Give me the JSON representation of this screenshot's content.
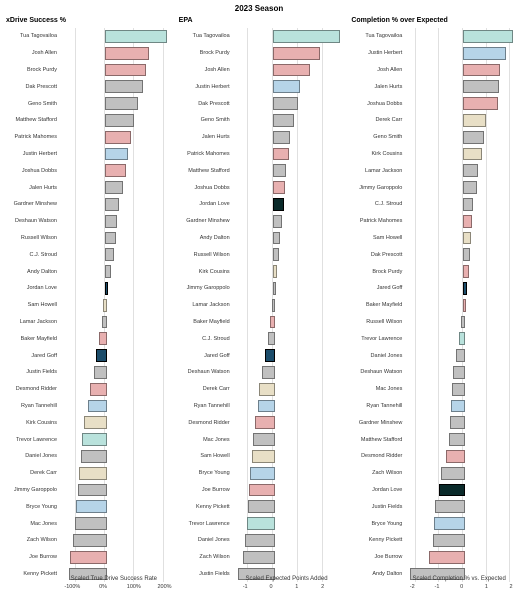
{
  "season_title": "2023 Season",
  "background_color": "#ffffff",
  "grid_color": "#e0e0e0",
  "highlight_border_color": "#000000",
  "font_family": "Arial",
  "title_fontsize": 8,
  "panel_title_fontsize": 7,
  "label_fontsize": 5.5,
  "axis_title_fontsize": 6,
  "highlighted_players": [
    "Jordan Love",
    "Jared Goff"
  ],
  "highlighted_color": "#1c4d6b",
  "colors": {
    "pale_teal": "#b9e2dc",
    "pale_blue": "#b6d4e8",
    "pale_red": "#e8b0b0",
    "pale_gray": "#c0c0c0",
    "pale_cream": "#e8dfc6",
    "pale_pink": "#e8c6d4",
    "highlight_blue": "#1c4d6b",
    "highlight_dark": "#0a2a2a"
  },
  "panels": [
    {
      "title": "xDrive Success %",
      "x_label": "Scaled True Drive Success Rate",
      "xlim": [
        -150,
        220
      ],
      "ticks": [
        -100,
        0,
        100,
        200
      ],
      "tick_labels": [
        "-100%",
        "0%",
        "100%",
        "200%"
      ],
      "data": [
        {
          "name": "Tua Tagovailoa",
          "value": 200,
          "color": "#b9e2dc"
        },
        {
          "name": "Josh Allen",
          "value": 140,
          "color": "#e8b0b0"
        },
        {
          "name": "Brock Purdy",
          "value": 130,
          "color": "#e8b0b0"
        },
        {
          "name": "Dak Prescott",
          "value": 120,
          "color": "#c0c0c0"
        },
        {
          "name": "Geno Smith",
          "value": 105,
          "color": "#c0c0c0"
        },
        {
          "name": "Matthew Stafford",
          "value": 90,
          "color": "#c0c0c0"
        },
        {
          "name": "Patrick Mahomes",
          "value": 80,
          "color": "#e8b0b0"
        },
        {
          "name": "Justin Herbert",
          "value": 70,
          "color": "#b6d4e8"
        },
        {
          "name": "Joshua Dobbs",
          "value": 65,
          "color": "#e8b0b0"
        },
        {
          "name": "Jalen Hurts",
          "value": 55,
          "color": "#c0c0c0"
        },
        {
          "name": "Gardner Minshew",
          "value": 40,
          "color": "#c0c0c0"
        },
        {
          "name": "Deshaun Watson",
          "value": 35,
          "color": "#c0c0c0"
        },
        {
          "name": "Russell Wilson",
          "value": 30,
          "color": "#c0c0c0"
        },
        {
          "name": "C.J. Stroud",
          "value": 25,
          "color": "#c0c0c0"
        },
        {
          "name": "Andy Dalton",
          "value": 15,
          "color": "#c0c0c0"
        },
        {
          "name": "Jordan Love",
          "value": 5,
          "color": "#1c4d6b",
          "highlighted": true
        },
        {
          "name": "Sam Howell",
          "value": -5,
          "color": "#e8dfc6"
        },
        {
          "name": "Lamar Jackson",
          "value": -10,
          "color": "#c0c0c0"
        },
        {
          "name": "Baker Mayfield",
          "value": -20,
          "color": "#e8b0b0"
        },
        {
          "name": "Jared Goff",
          "value": -30,
          "color": "#1c4d6b",
          "highlighted": true
        },
        {
          "name": "Justin Fields",
          "value": -35,
          "color": "#c0c0c0"
        },
        {
          "name": "Desmond Ridder",
          "value": -50,
          "color": "#e8b0b0"
        },
        {
          "name": "Ryan Tannehill",
          "value": -55,
          "color": "#b6d4e8"
        },
        {
          "name": "Kirk Cousins",
          "value": -70,
          "color": "#e8dfc6"
        },
        {
          "name": "Trevor Lawrence",
          "value": -75,
          "color": "#b9e2dc"
        },
        {
          "name": "Daniel Jones",
          "value": -80,
          "color": "#c0c0c0"
        },
        {
          "name": "Derek Carr",
          "value": -85,
          "color": "#e8dfc6"
        },
        {
          "name": "Jimmy Garoppolo",
          "value": -90,
          "color": "#c0c0c0"
        },
        {
          "name": "Bryce Young",
          "value": -95,
          "color": "#b6d4e8"
        },
        {
          "name": "Mac Jones",
          "value": -100,
          "color": "#c0c0c0"
        },
        {
          "name": "Zach Wilson",
          "value": -105,
          "color": "#c0c0c0"
        },
        {
          "name": "Joe Burrow",
          "value": -115,
          "color": "#e8b0b0"
        },
        {
          "name": "Kenny Pickett",
          "value": -120,
          "color": "#c0c0c0"
        }
      ]
    },
    {
      "title": "EPA",
      "x_label": "Scaled Expected Points Added",
      "xlim": [
        -1.6,
        2.8
      ],
      "ticks": [
        -1,
        0,
        1,
        2
      ],
      "tick_labels": [
        "-1",
        "0",
        "1",
        "2"
      ],
      "data": [
        {
          "name": "Tua Tagovailoa",
          "value": 2.6,
          "color": "#b9e2dc"
        },
        {
          "name": "Brock Purdy",
          "value": 1.8,
          "color": "#e8b0b0"
        },
        {
          "name": "Josh Allen",
          "value": 1.4,
          "color": "#e8b0b0"
        },
        {
          "name": "Justin Herbert",
          "value": 1.0,
          "color": "#b6d4e8"
        },
        {
          "name": "Dak Prescott",
          "value": 0.9,
          "color": "#c0c0c0"
        },
        {
          "name": "Geno Smith",
          "value": 0.75,
          "color": "#c0c0c0"
        },
        {
          "name": "Jalen Hurts",
          "value": 0.6,
          "color": "#c0c0c0"
        },
        {
          "name": "Patrick Mahomes",
          "value": 0.55,
          "color": "#e8b0b0"
        },
        {
          "name": "Matthew Stafford",
          "value": 0.45,
          "color": "#c0c0c0"
        },
        {
          "name": "Joshua Dobbs",
          "value": 0.4,
          "color": "#e8b0b0"
        },
        {
          "name": "Jordan Love",
          "value": 0.35,
          "color": "#0a2a2a",
          "highlighted": true
        },
        {
          "name": "Gardner Minshew",
          "value": 0.3,
          "color": "#c0c0c0"
        },
        {
          "name": "Andy Dalton",
          "value": 0.2,
          "color": "#c0c0c0"
        },
        {
          "name": "Russell Wilson",
          "value": 0.15,
          "color": "#c0c0c0"
        },
        {
          "name": "Kirk Cousins",
          "value": 0.1,
          "color": "#e8dfc6"
        },
        {
          "name": "Jimmy Garoppolo",
          "value": 0.05,
          "color": "#c0c0c0"
        },
        {
          "name": "Lamar Jackson",
          "value": -0.05,
          "color": "#c0c0c0"
        },
        {
          "name": "Baker Mayfield",
          "value": -0.1,
          "color": "#e8b0b0"
        },
        {
          "name": "C.J. Stroud",
          "value": -0.2,
          "color": "#c0c0c0"
        },
        {
          "name": "Jared Goff",
          "value": -0.3,
          "color": "#1c4d6b",
          "highlighted": true
        },
        {
          "name": "Deshaun Watson",
          "value": -0.45,
          "color": "#c0c0c0"
        },
        {
          "name": "Derek Carr",
          "value": -0.55,
          "color": "#e8dfc6"
        },
        {
          "name": "Ryan Tannehill",
          "value": -0.6,
          "color": "#b6d4e8"
        },
        {
          "name": "Desmond Ridder",
          "value": -0.7,
          "color": "#e8b0b0"
        },
        {
          "name": "Mac Jones",
          "value": -0.8,
          "color": "#c0c0c0"
        },
        {
          "name": "Sam Howell",
          "value": -0.85,
          "color": "#e8dfc6"
        },
        {
          "name": "Bryce Young",
          "value": -0.9,
          "color": "#b6d4e8"
        },
        {
          "name": "Joe Burrow",
          "value": -0.95,
          "color": "#e8b0b0"
        },
        {
          "name": "Kenny Pickett",
          "value": -1.0,
          "color": "#c0c0c0"
        },
        {
          "name": "Trevor Lawrence",
          "value": -1.05,
          "color": "#b9e2dc"
        },
        {
          "name": "Daniel Jones",
          "value": -1.1,
          "color": "#c0c0c0"
        },
        {
          "name": "Zach Wilson",
          "value": -1.2,
          "color": "#c0c0c0"
        },
        {
          "name": "Justin Fields",
          "value": -1.4,
          "color": "#c0c0c0"
        }
      ]
    },
    {
      "title": "Completion % over Expected",
      "x_label": "Scaled Completion % vs. Expected",
      "xlim": [
        -2.4,
        2.2
      ],
      "ticks": [
        -2,
        -1,
        0,
        1,
        2
      ],
      "tick_labels": [
        "-2",
        "-1",
        "0",
        "1",
        "2"
      ],
      "data": [
        {
          "name": "Tua Tagovailoa",
          "value": 2.0,
          "color": "#b9e2dc"
        },
        {
          "name": "Justin Herbert",
          "value": 1.7,
          "color": "#b6d4e8"
        },
        {
          "name": "Josh Allen",
          "value": 1.45,
          "color": "#e8b0b0"
        },
        {
          "name": "Jalen Hurts",
          "value": 1.4,
          "color": "#c0c0c0"
        },
        {
          "name": "Joshua Dobbs",
          "value": 1.35,
          "color": "#e8b0b0"
        },
        {
          "name": "Derek Carr",
          "value": 0.85,
          "color": "#e8dfc6"
        },
        {
          "name": "Geno Smith",
          "value": 0.8,
          "color": "#c0c0c0"
        },
        {
          "name": "Kirk Cousins",
          "value": 0.7,
          "color": "#e8dfc6"
        },
        {
          "name": "Lamar Jackson",
          "value": 0.55,
          "color": "#c0c0c0"
        },
        {
          "name": "Jimmy Garoppolo",
          "value": 0.5,
          "color": "#c0c0c0"
        },
        {
          "name": "C.J. Stroud",
          "value": 0.35,
          "color": "#c0c0c0"
        },
        {
          "name": "Patrick Mahomes",
          "value": 0.3,
          "color": "#e8b0b0"
        },
        {
          "name": "Sam Howell",
          "value": 0.25,
          "color": "#e8dfc6"
        },
        {
          "name": "Dak Prescott",
          "value": 0.2,
          "color": "#c0c0c0"
        },
        {
          "name": "Brock Purdy",
          "value": 0.15,
          "color": "#e8b0b0"
        },
        {
          "name": "Jared Goff",
          "value": 0.1,
          "color": "#1c4d6b",
          "highlighted": true
        },
        {
          "name": "Baker Mayfield",
          "value": 0.05,
          "color": "#e8b0b0"
        },
        {
          "name": "Russell Wilson",
          "value": -0.1,
          "color": "#c0c0c0"
        },
        {
          "name": "Trevor Lawrence",
          "value": -0.15,
          "color": "#b9e2dc"
        },
        {
          "name": "Daniel Jones",
          "value": -0.3,
          "color": "#c0c0c0"
        },
        {
          "name": "Deshaun Watson",
          "value": -0.4,
          "color": "#c0c0c0"
        },
        {
          "name": "Mac Jones",
          "value": -0.45,
          "color": "#c0c0c0"
        },
        {
          "name": "Ryan Tannehill",
          "value": -0.5,
          "color": "#b6d4e8"
        },
        {
          "name": "Gardner Minshew",
          "value": -0.55,
          "color": "#c0c0c0"
        },
        {
          "name": "Matthew Stafford",
          "value": -0.6,
          "color": "#c0c0c0"
        },
        {
          "name": "Desmond Ridder",
          "value": -0.7,
          "color": "#e8b0b0"
        },
        {
          "name": "Zach Wilson",
          "value": -0.9,
          "color": "#c0c0c0"
        },
        {
          "name": "Jordan Love",
          "value": -1.0,
          "color": "#0a2a2a",
          "highlighted": true
        },
        {
          "name": "Justin Fields",
          "value": -1.15,
          "color": "#c0c0c0"
        },
        {
          "name": "Bryce Young",
          "value": -1.2,
          "color": "#b6d4e8"
        },
        {
          "name": "Kenny Pickett",
          "value": -1.25,
          "color": "#c0c0c0"
        },
        {
          "name": "Joe Burrow",
          "value": -1.4,
          "color": "#e8b0b0"
        },
        {
          "name": "Andy Dalton",
          "value": -2.2,
          "color": "#c0c0c0"
        }
      ]
    }
  ]
}
